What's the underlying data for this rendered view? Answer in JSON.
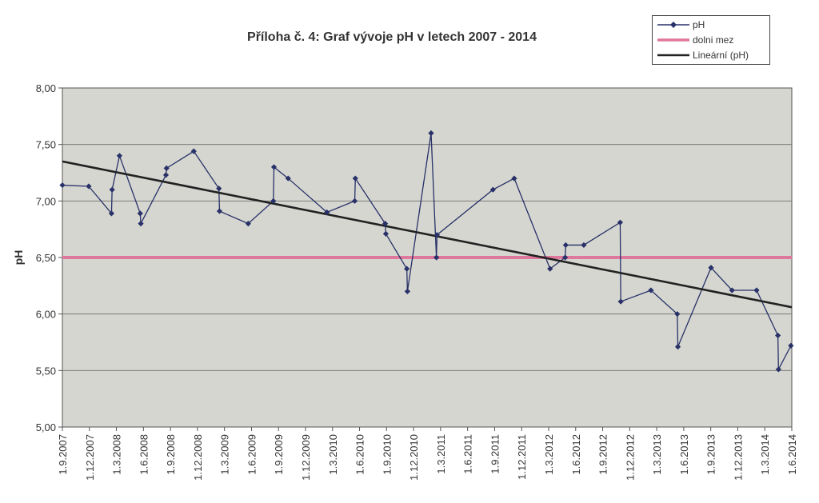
{
  "chart_data": {
    "type": "line",
    "title": "Příloha č. 4: Graf vývoje pH v letech 2007 - 2014",
    "ylabel": "pH",
    "ylim": [
      5.0,
      8.0
    ],
    "yticks": [
      5.0,
      5.5,
      6.0,
      6.5,
      7.0,
      7.5,
      8.0
    ],
    "ytick_labels": [
      "5,00",
      "5,50",
      "6,00",
      "6,50",
      "7,00",
      "7,50",
      "8,00"
    ],
    "xlim": [
      "2007-09-01",
      "2014-06-01"
    ],
    "xtick_labels": [
      "1.9.2007",
      "1.12.2007",
      "1.3.2008",
      "1.6.2008",
      "1.9.2008",
      "1.12.2008",
      "1.3.2009",
      "1.6.2009",
      "1.9.2009",
      "1.12.2009",
      "1.3.2010",
      "1.6.2010",
      "1.9.2010",
      "1.12.2010",
      "1.3.2011",
      "1.6.2011",
      "1.9.2011",
      "1.12.2011",
      "1.3.2012",
      "1.6.2012",
      "1.9.2012",
      "1.12.2012",
      "1.3.2013",
      "1.6.2013",
      "1.9.2013",
      "1.12.2013",
      "1.3.2014",
      "1.6.2014"
    ],
    "grid": true,
    "legend_position": "top-right",
    "background_color": "#d5d6d0",
    "series": [
      {
        "name": "pH",
        "color": "#283168",
        "marker": "diamond",
        "points": [
          [
            "2007-09-01",
            7.14
          ],
          [
            "2007-11-29",
            7.13
          ],
          [
            "2008-02-14",
            6.89
          ],
          [
            "2008-02-16",
            7.1
          ],
          [
            "2008-03-12",
            7.4
          ],
          [
            "2008-05-21",
            6.89
          ],
          [
            "2008-05-23",
            6.8
          ],
          [
            "2008-08-16",
            7.23
          ],
          [
            "2008-08-18",
            7.29
          ],
          [
            "2008-11-18",
            7.44
          ],
          [
            "2009-02-11",
            7.11
          ],
          [
            "2009-02-13",
            6.91
          ],
          [
            "2009-05-21",
            6.8
          ],
          [
            "2009-08-14",
            7.0
          ],
          [
            "2009-08-16",
            7.3
          ],
          [
            "2009-10-03",
            7.2
          ],
          [
            "2010-02-11",
            6.9
          ],
          [
            "2010-05-16",
            7.0
          ],
          [
            "2010-05-18",
            7.2
          ],
          [
            "2010-08-27",
            6.8
          ],
          [
            "2010-08-29",
            6.71
          ],
          [
            "2010-11-08",
            6.4
          ],
          [
            "2010-11-10",
            6.2
          ],
          [
            "2011-01-29",
            7.6
          ],
          [
            "2011-02-16",
            6.5
          ],
          [
            "2011-02-18",
            6.7
          ],
          [
            "2011-08-26",
            7.1
          ],
          [
            "2011-11-06",
            7.2
          ],
          [
            "2012-03-06",
            6.4
          ],
          [
            "2012-04-26",
            6.5
          ],
          [
            "2012-04-28",
            6.61
          ],
          [
            "2012-06-28",
            6.61
          ],
          [
            "2012-10-29",
            6.81
          ],
          [
            "2012-10-31",
            6.11
          ],
          [
            "2013-02-10",
            6.21
          ],
          [
            "2013-05-10",
            6.0
          ],
          [
            "2013-05-12",
            5.71
          ],
          [
            "2013-09-01",
            6.41
          ],
          [
            "2013-11-11",
            6.21
          ],
          [
            "2014-02-02",
            6.21
          ],
          [
            "2014-04-15",
            5.81
          ],
          [
            "2014-04-17",
            5.51
          ],
          [
            "2014-05-29",
            5.72
          ]
        ]
      },
      {
        "name": "dolni mez",
        "color": "#e0779c",
        "points": [
          [
            "2007-09-01",
            6.5
          ],
          [
            "2014-06-01",
            6.5
          ]
        ]
      },
      {
        "name": "Lineární (pH)",
        "color": "#222222",
        "points": [
          [
            "2007-09-01",
            7.35
          ],
          [
            "2014-06-01",
            6.06
          ]
        ]
      }
    ]
  }
}
